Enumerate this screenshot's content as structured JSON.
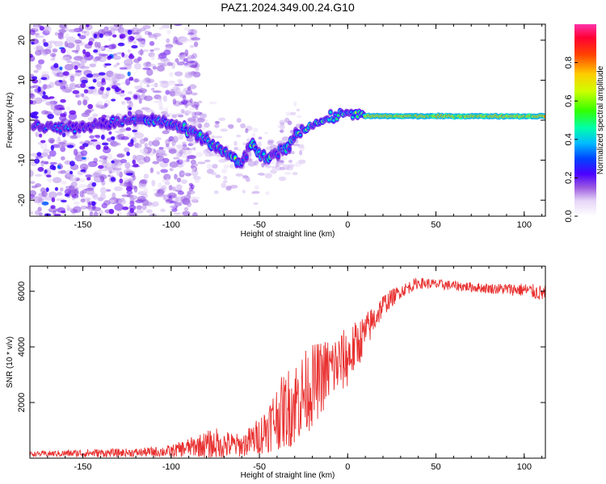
{
  "title": "PAZ1.2024.349.00.24.G10",
  "chart_data": [
    {
      "type": "heatmap",
      "xlabel": "Height of straight line (km)",
      "ylabel": "Frequency (Hz)",
      "xlim": [
        -180,
        112
      ],
      "ylim": [
        -24,
        24
      ],
      "x_ticks": [
        -150,
        -100,
        -50,
        0,
        50,
        100
      ],
      "y_ticks": [
        -20,
        -10,
        0,
        10,
        20
      ],
      "colorbar": {
        "label": "Normalized spectral amplitude",
        "range": [
          0,
          1
        ],
        "ticks": [
          "0.0",
          "0.2",
          "0.4",
          "0.6",
          "0.8"
        ],
        "colors": [
          "#ffffff",
          "#ffffff",
          "#c9a8f0",
          "#8a2be2",
          "#3300ff",
          "#0066ff",
          "#00ccff",
          "#00ff66",
          "#aaff00",
          "#ffff00",
          "#ff8800",
          "#ff0000",
          "#ff00aa"
        ]
      },
      "ridge": [
        {
          "x": -170,
          "y": -1.5
        },
        {
          "x": -155,
          "y": -2
        },
        {
          "x": -140,
          "y": -1
        },
        {
          "x": -120,
          "y": 0
        },
        {
          "x": -110,
          "y": 0
        },
        {
          "x": -100,
          "y": -1
        },
        {
          "x": -90,
          "y": -3
        },
        {
          "x": -80,
          "y": -5
        },
        {
          "x": -70,
          "y": -8
        },
        {
          "x": -60,
          "y": -11
        },
        {
          "x": -55,
          "y": -6
        },
        {
          "x": -45,
          "y": -10
        },
        {
          "x": -35,
          "y": -7
        },
        {
          "x": -28,
          "y": -3
        },
        {
          "x": -20,
          "y": -1
        },
        {
          "x": -10,
          "y": 0.5
        },
        {
          "x": 0,
          "y": 2
        },
        {
          "x": 10,
          "y": 1
        },
        {
          "x": 20,
          "y": 1
        },
        {
          "x": 40,
          "y": 1
        },
        {
          "x": 60,
          "y": 1
        },
        {
          "x": 80,
          "y": 1
        },
        {
          "x": 100,
          "y": 1
        },
        {
          "x": 112,
          "y": 1
        }
      ]
    },
    {
      "type": "line",
      "xlabel": "Height of straight line (km)",
      "ylabel": "SNR (10 * v/v)",
      "xlim": [
        -180,
        112
      ],
      "ylim": [
        0,
        6900
      ],
      "x_ticks": [
        -150,
        -100,
        -50,
        0,
        50,
        100
      ],
      "y_ticks": [
        2000,
        4000,
        6000
      ],
      "color": "#e8302f",
      "envelope": [
        {
          "x": -180,
          "mean": 150,
          "spread": 80
        },
        {
          "x": -150,
          "mean": 180,
          "spread": 150
        },
        {
          "x": -120,
          "mean": 200,
          "spread": 150
        },
        {
          "x": -100,
          "mean": 250,
          "spread": 220
        },
        {
          "x": -85,
          "mean": 450,
          "spread": 400
        },
        {
          "x": -75,
          "mean": 500,
          "spread": 600
        },
        {
          "x": -60,
          "mean": 450,
          "spread": 400
        },
        {
          "x": -50,
          "mean": 800,
          "spread": 700
        },
        {
          "x": -40,
          "mean": 1500,
          "spread": 1200
        },
        {
          "x": -30,
          "mean": 2000,
          "spread": 1600
        },
        {
          "x": -20,
          "mean": 2600,
          "spread": 1500
        },
        {
          "x": -10,
          "mean": 3200,
          "spread": 1200
        },
        {
          "x": 0,
          "mean": 3600,
          "spread": 1100
        },
        {
          "x": 10,
          "mean": 4500,
          "spread": 700
        },
        {
          "x": 20,
          "mean": 5500,
          "spread": 400
        },
        {
          "x": 30,
          "mean": 6000,
          "spread": 250
        },
        {
          "x": 40,
          "mean": 6300,
          "spread": 200
        },
        {
          "x": 60,
          "mean": 6200,
          "spread": 180
        },
        {
          "x": 80,
          "mean": 6100,
          "spread": 180
        },
        {
          "x": 100,
          "mean": 6050,
          "spread": 250
        },
        {
          "x": 112,
          "mean": 5900,
          "spread": 300
        }
      ]
    }
  ]
}
